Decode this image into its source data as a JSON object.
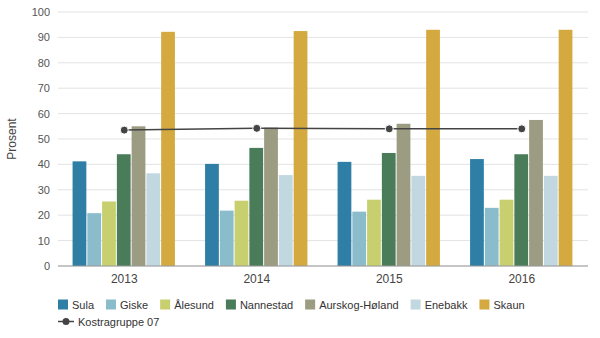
{
  "chart_data": {
    "type": "bar",
    "categories": [
      "2013",
      "2014",
      "2015",
      "2016"
    ],
    "ylabel": "Prosent",
    "ylim": [
      0,
      100
    ],
    "yticks": [
      0,
      10,
      20,
      30,
      40,
      50,
      60,
      70,
      80,
      90,
      100
    ],
    "grid": true,
    "legend": "bottom",
    "series": [
      {
        "name": "Sula",
        "color": "#2e7ea6",
        "values": [
          41.2,
          40.2,
          41.0,
          42.1
        ]
      },
      {
        "name": "Giske",
        "color": "#8bbccc",
        "values": [
          20.8,
          21.8,
          21.4,
          22.9
        ]
      },
      {
        "name": "Ålesund",
        "color": "#c8cf6e",
        "values": [
          25.4,
          25.7,
          26.1,
          26.1
        ]
      },
      {
        "name": "Nannestad",
        "color": "#4a7c59",
        "values": [
          44.0,
          46.5,
          44.5,
          44.0
        ]
      },
      {
        "name": "Aurskog-Høland",
        "color": "#9c9c82",
        "values": [
          55.0,
          54.5,
          56.0,
          57.5
        ]
      },
      {
        "name": "Enebakk",
        "color": "#c2d8e0",
        "values": [
          36.5,
          35.8,
          35.5,
          35.5
        ]
      },
      {
        "name": "Skaun",
        "color": "#d4aa40",
        "values": [
          92.2,
          92.5,
          93.0,
          93.0
        ]
      },
      {
        "name": "Kostragruppe 07",
        "type": "line",
        "marker": "circle",
        "color": "#444444",
        "values": [
          53.5,
          54.2,
          54.0,
          54.0
        ]
      }
    ]
  }
}
